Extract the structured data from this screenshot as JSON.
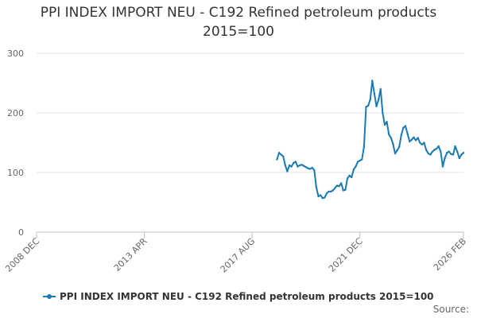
{
  "chart_data": {
    "type": "line",
    "title_line1": "PPI INDEX IMPORT NEU - C192 Refined petroleum products",
    "title_line2": "2015=100",
    "xlabel": "",
    "ylabel": "",
    "x_tick_labels": [
      "2008 DEC",
      "2013 APR",
      "2017 AUG",
      "2021 DEC",
      "2026 FEB"
    ],
    "x_tick_values": [
      "2008-12",
      "2013-04",
      "2017-08",
      "2021-12",
      "2026-02"
    ],
    "xlim": [
      "2008-12",
      "2026-02"
    ],
    "y_ticks": [
      0,
      100,
      200,
      300
    ],
    "ylim": [
      0,
      300
    ],
    "grid": "horizontal",
    "legend_position": "bottom",
    "series": [
      {
        "name": "PPI INDEX IMPORT NEU - C192 Refined petroleum products 2015=100",
        "color": "#1a7ab5",
        "points": [
          [
            "2018-08",
            122
          ],
          [
            "2018-09",
            133
          ],
          [
            "2018-10",
            130
          ],
          [
            "2018-11",
            127
          ],
          [
            "2018-12",
            112
          ],
          [
            "2019-01",
            102
          ],
          [
            "2019-02",
            112
          ],
          [
            "2019-03",
            110
          ],
          [
            "2019-04",
            116
          ],
          [
            "2019-05",
            118
          ],
          [
            "2019-06",
            110
          ],
          [
            "2019-07",
            112
          ],
          [
            "2019-08",
            113
          ],
          [
            "2019-09",
            111
          ],
          [
            "2019-10",
            109
          ],
          [
            "2019-11",
            107
          ],
          [
            "2019-12",
            106
          ],
          [
            "2020-01",
            108
          ],
          [
            "2020-02",
            104
          ],
          [
            "2020-03",
            75
          ],
          [
            "2020-04",
            60
          ],
          [
            "2020-05",
            62
          ],
          [
            "2020-06",
            57
          ],
          [
            "2020-07",
            58
          ],
          [
            "2020-08",
            65
          ],
          [
            "2020-09",
            68
          ],
          [
            "2020-10",
            68
          ],
          [
            "2020-11",
            70
          ],
          [
            "2020-12",
            74
          ],
          [
            "2021-01",
            78
          ],
          [
            "2021-02",
            77
          ],
          [
            "2021-03",
            82
          ],
          [
            "2021-04",
            70
          ],
          [
            "2021-05",
            71
          ],
          [
            "2021-06",
            90
          ],
          [
            "2021-07",
            95
          ],
          [
            "2021-08",
            92
          ],
          [
            "2021-09",
            105
          ],
          [
            "2021-10",
            110
          ],
          [
            "2021-11",
            118
          ],
          [
            "2021-12",
            120
          ],
          [
            "2022-01",
            122
          ],
          [
            "2022-02",
            143
          ],
          [
            "2022-03",
            210
          ],
          [
            "2022-04",
            212
          ],
          [
            "2022-05",
            222
          ],
          [
            "2022-06",
            254
          ],
          [
            "2022-07",
            232
          ],
          [
            "2022-08",
            211
          ],
          [
            "2022-09",
            222
          ],
          [
            "2022-10",
            240
          ],
          [
            "2022-11",
            200
          ],
          [
            "2022-12",
            180
          ],
          [
            "2023-01",
            185
          ],
          [
            "2023-02",
            164
          ],
          [
            "2023-03",
            158
          ],
          [
            "2023-04",
            148
          ],
          [
            "2023-05",
            132
          ],
          [
            "2023-06",
            137
          ],
          [
            "2023-07",
            143
          ],
          [
            "2023-08",
            163
          ],
          [
            "2023-09",
            175
          ],
          [
            "2023-10",
            178
          ],
          [
            "2023-11",
            165
          ],
          [
            "2023-12",
            152
          ],
          [
            "2024-01",
            155
          ],
          [
            "2024-02",
            159
          ],
          [
            "2024-03",
            154
          ],
          [
            "2024-04",
            158
          ],
          [
            "2024-05",
            150
          ],
          [
            "2024-06",
            147
          ],
          [
            "2024-07",
            150
          ],
          [
            "2024-08",
            138
          ],
          [
            "2024-09",
            132
          ],
          [
            "2024-10",
            130
          ],
          [
            "2024-11",
            135
          ],
          [
            "2024-12",
            138
          ],
          [
            "2025-01",
            140
          ],
          [
            "2025-02",
            144
          ],
          [
            "2025-03",
            135
          ],
          [
            "2025-04",
            110
          ],
          [
            "2025-05",
            124
          ],
          [
            "2025-06",
            133
          ],
          [
            "2025-07",
            135
          ],
          [
            "2025-08",
            131
          ],
          [
            "2025-09",
            130
          ],
          [
            "2025-10",
            144
          ],
          [
            "2025-11",
            135
          ],
          [
            "2025-12",
            124
          ],
          [
            "2026-01",
            130
          ],
          [
            "2026-02",
            133
          ]
        ]
      }
    ]
  },
  "footer": {
    "source_label": "Source:"
  }
}
